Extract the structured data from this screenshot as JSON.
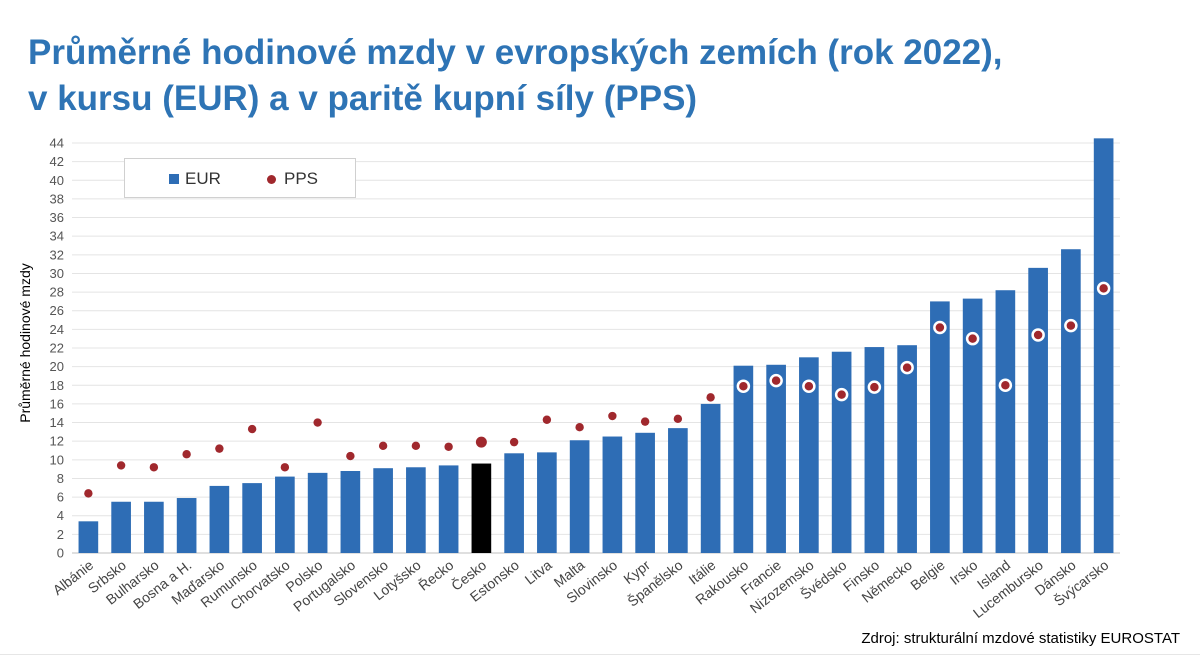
{
  "title": {
    "line1": "Průměrné hodinové mzdy v evropských zemích (rok 2022),",
    "line2": "v kursu (EUR) a v paritě kupní síly (PPS)"
  },
  "source": "Zdroj: strukturální mzdové statistiky EUROSTAT",
  "colors": {
    "bar": "#2e6db5",
    "highlight_bar": "#000000",
    "dot": "#a0282d",
    "dot_outline": "#ffffff",
    "grid": "#e4e4e4",
    "title": "#2e74b5"
  },
  "chart_data": {
    "type": "bar",
    "ylabel": "Průměrné hodinové mzdy",
    "ylim": [
      0,
      44
    ],
    "ytick_step": 2,
    "grid": true,
    "legend_position": "top-left",
    "highlight_category": "Česko",
    "categories": [
      "Albánie",
      "Srbsko",
      "Bulharsko",
      "Bosna a H.",
      "Maďarsko",
      "Rumunsko",
      "Chorvatsko",
      "Polsko",
      "Portugalsko",
      "Slovensko",
      "Lotyšsko",
      "Řecko",
      "Česko",
      "Estonsko",
      "Litva",
      "Malta",
      "Slovinsko",
      "Kypr",
      "Španělsko",
      "Itálie",
      "Rakousko",
      "Francie",
      "Nizozemsko",
      "Švédsko",
      "Finsko",
      "Německo",
      "Belgie",
      "Irsko",
      "Island",
      "Lucembursko",
      "Dánsko",
      "Švýcarsko"
    ],
    "series": [
      {
        "name": "EUR",
        "type": "bar",
        "values": [
          3.4,
          5.5,
          5.5,
          5.9,
          7.2,
          7.5,
          8.2,
          8.6,
          8.8,
          9.1,
          9.2,
          9.4,
          9.6,
          10.7,
          10.8,
          12.1,
          12.5,
          12.9,
          13.4,
          16.0,
          20.1,
          20.2,
          21.0,
          21.6,
          22.1,
          22.3,
          27.0,
          27.3,
          28.2,
          30.6,
          32.6,
          44.5
        ]
      },
      {
        "name": "PPS",
        "type": "scatter",
        "values": [
          6.4,
          9.4,
          9.2,
          10.6,
          11.2,
          13.3,
          9.2,
          14.0,
          10.4,
          11.5,
          11.5,
          11.4,
          11.9,
          11.9,
          14.3,
          13.5,
          14.7,
          14.1,
          14.4,
          16.7,
          17.9,
          18.5,
          17.9,
          17.0,
          17.8,
          19.9,
          24.2,
          23.0,
          18.0,
          23.4,
          24.4,
          28.4
        ]
      }
    ]
  }
}
